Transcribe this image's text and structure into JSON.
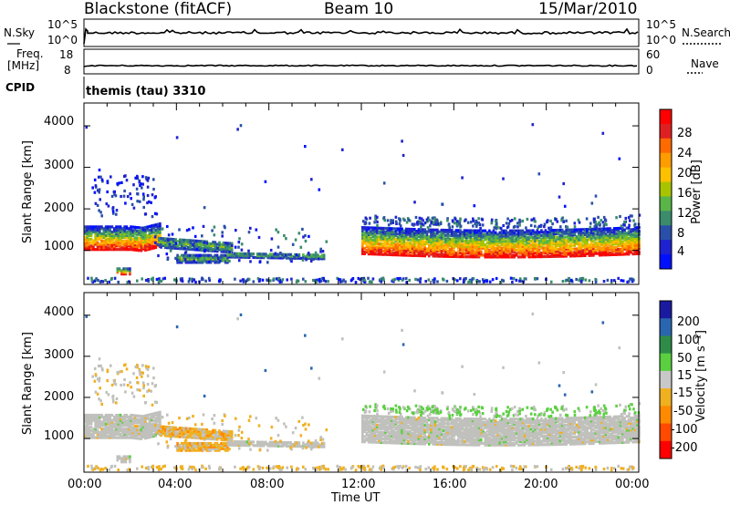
{
  "header": {
    "station": "Blackstone (fitACF)",
    "beam": "Beam 10",
    "date": "15/Mar/2010"
  },
  "summary_panels": {
    "nsky_label": "N.Sky",
    "nsky_ticks": [
      "10^5",
      "10^0"
    ],
    "nsearch_label": "N.Search",
    "nsearch_ticks": [
      "10^5",
      "10^0"
    ],
    "freq_label": "Freq.",
    "freq_unit": "[MHz]",
    "freq_ticks": [
      "18",
      "8"
    ],
    "nave_label": "Nave",
    "nave_ticks": [
      "60",
      "0"
    ],
    "cpid_label": "CPID",
    "cpid_value": "themis (tau) 3310"
  },
  "chart_data": [
    {
      "type": "heatmap",
      "name": "power",
      "ylabel": "Slant Range [km]",
      "yticks": [
        "4000",
        "3000",
        "2000",
        "1000"
      ],
      "ylim": [
        180,
        4550
      ],
      "colorbar_label": "Power [dB]",
      "colorbar_ticks": [
        "28",
        "24",
        "20",
        "16",
        "12",
        "8",
        "4"
      ],
      "colorbar_colors": [
        "#ff0000",
        "#e02020",
        "#ff6a00",
        "#ff9c00",
        "#ffc000",
        "#a8c400",
        "#5ab548",
        "#3a8c6c",
        "#2a4fa8",
        "#1e22d0",
        "#0010ff"
      ],
      "echo_regions": [
        {
          "t0": 0.0,
          "t1": 3.2,
          "r0": 950,
          "r1": 1700,
          "level": "strong"
        },
        {
          "t0": 3.2,
          "t1": 10.5,
          "r0": 700,
          "r1": 1300,
          "level": "weak"
        },
        {
          "t0": 12.0,
          "t1": 24.0,
          "r0": 850,
          "r1": 1700,
          "level": "strong"
        }
      ]
    },
    {
      "type": "heatmap",
      "name": "velocity",
      "ylabel": "Slant Range [km]",
      "yticks": [
        "4000",
        "3000",
        "2000",
        "1000"
      ],
      "ylim": [
        180,
        4550
      ],
      "colorbar_label": "Velocity [m s⁻¹]",
      "colorbar_ticks": [
        "200",
        "100",
        "50",
        "15",
        "-15",
        "-50",
        "-100",
        "-200"
      ],
      "colorbar_colors": [
        "#1a1aa0",
        "#2a66b0",
        "#2e8c48",
        "#5ad040",
        "#c8c8c8",
        "#f0b020",
        "#ff8a00",
        "#ff4a00",
        "#ff0000"
      ],
      "ground_scatter_color": "#c0c0bc"
    }
  ],
  "time_axis": {
    "ticks": [
      "00:00",
      "04:00",
      "08:00",
      "12:00",
      "16:00",
      "20:00",
      "00:00"
    ],
    "label": "Time UT"
  }
}
